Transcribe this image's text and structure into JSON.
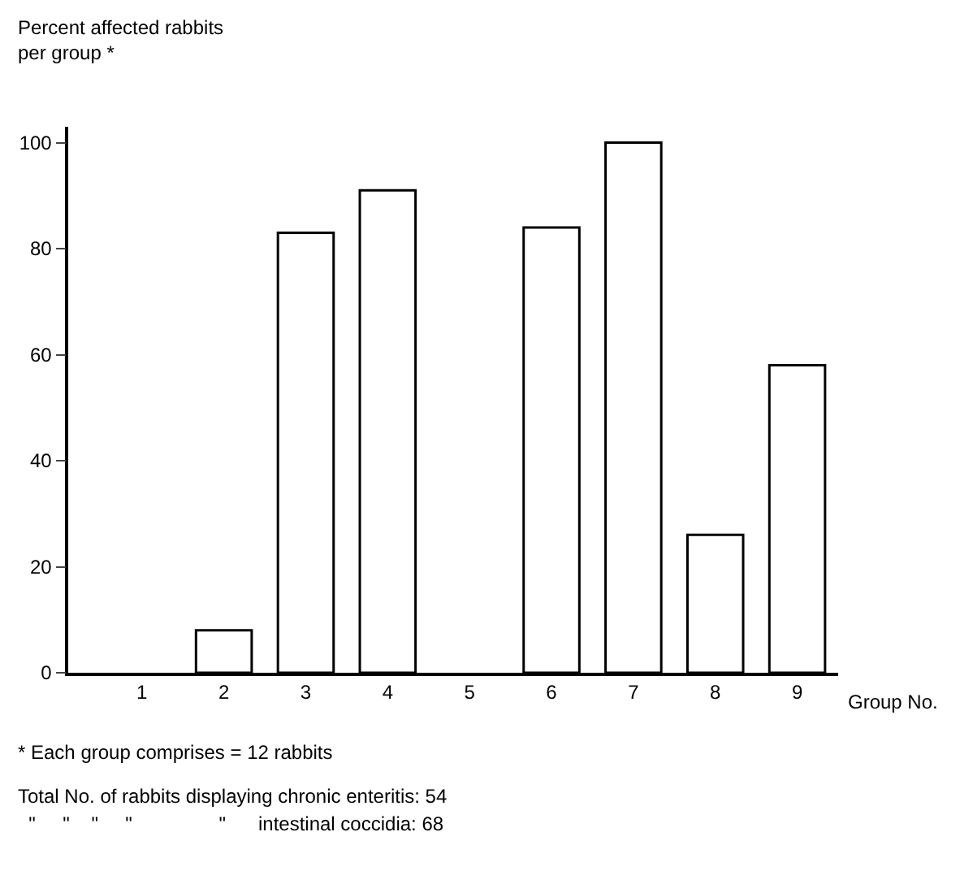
{
  "chart_data": {
    "type": "bar",
    "ylabel": "Percent affected rabbits\nper group *",
    "xlabel": "Group No.",
    "categories": [
      "1",
      "2",
      "3",
      "4",
      "5",
      "6",
      "7",
      "8",
      "9"
    ],
    "values": [
      0,
      8,
      83,
      91,
      0,
      84,
      100,
      26,
      58
    ],
    "color": "#ffffff",
    "ylim": [
      0,
      103
    ],
    "yticks": [
      0,
      20,
      40,
      60,
      80,
      100
    ],
    "legend": false,
    "annotations": [
      "* Each group comprises = 12 rabbits",
      "Total No. of rabbits displaying chronic enteritis: 54",
      "  \"     \"    \"     \"                \"      intestinal coccidia: 68"
    ]
  }
}
